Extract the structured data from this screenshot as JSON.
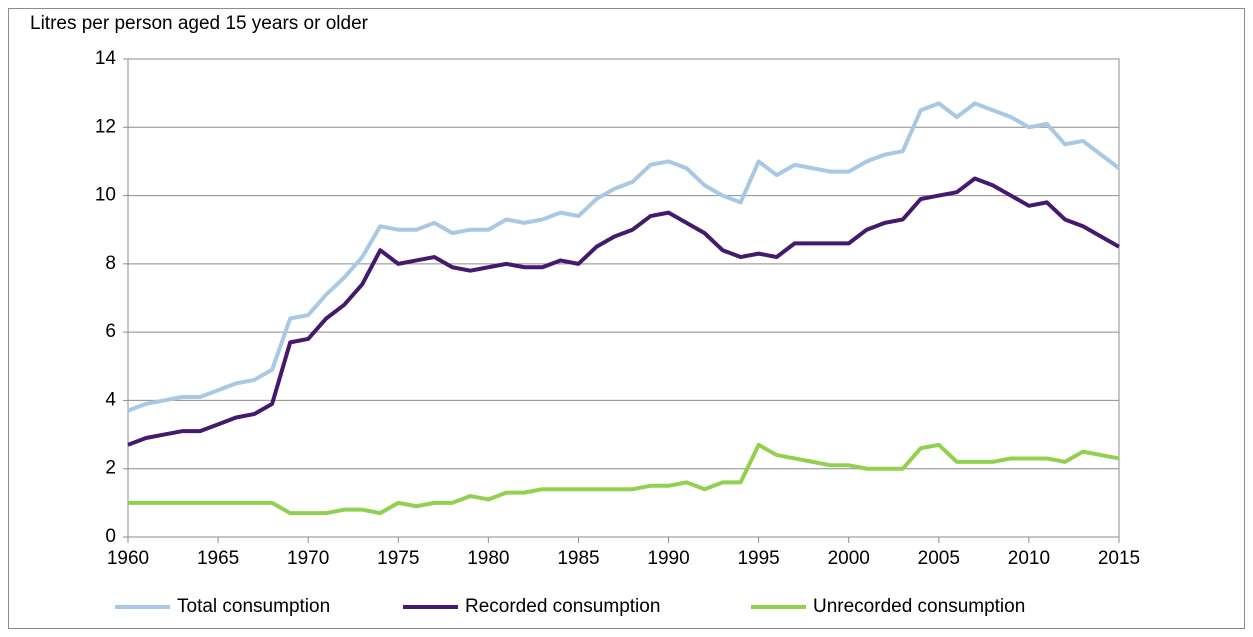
{
  "chart_data": {
    "type": "line",
    "y_label": "Litres per person aged 15 years or older",
    "x": [
      1960,
      1961,
      1962,
      1963,
      1964,
      1965,
      1966,
      1967,
      1968,
      1969,
      1970,
      1971,
      1972,
      1973,
      1974,
      1975,
      1976,
      1977,
      1978,
      1979,
      1980,
      1981,
      1982,
      1983,
      1984,
      1985,
      1986,
      1987,
      1988,
      1989,
      1990,
      1991,
      1992,
      1993,
      1994,
      1995,
      1996,
      1997,
      1998,
      1999,
      2000,
      2001,
      2002,
      2003,
      2004,
      2005,
      2006,
      2007,
      2008,
      2009,
      2010,
      2011,
      2012,
      2013,
      2014,
      2015
    ],
    "series": [
      {
        "name": "Total consumption",
        "color": "#a8c8e4",
        "values": [
          3.7,
          3.9,
          4.0,
          4.1,
          4.1,
          4.3,
          4.5,
          4.6,
          4.9,
          6.4,
          6.5,
          7.1,
          7.6,
          8.2,
          9.1,
          9.0,
          9.0,
          9.2,
          8.9,
          9.0,
          9.0,
          9.3,
          9.2,
          9.3,
          9.5,
          9.4,
          9.9,
          10.2,
          10.4,
          10.9,
          11.0,
          10.8,
          10.3,
          10.0,
          9.8,
          11.0,
          10.6,
          10.9,
          10.8,
          10.7,
          10.7,
          11.0,
          11.2,
          11.3,
          12.5,
          12.7,
          12.3,
          12.7,
          12.5,
          12.3,
          12.0,
          12.1,
          11.5,
          11.6,
          11.2,
          10.8
        ]
      },
      {
        "name": "Recorded consumption",
        "color": "#44196e",
        "values": [
          2.7,
          2.9,
          3.0,
          3.1,
          3.1,
          3.3,
          3.5,
          3.6,
          3.9,
          5.7,
          5.8,
          6.4,
          6.8,
          7.4,
          8.4,
          8.0,
          8.1,
          8.2,
          7.9,
          7.8,
          7.9,
          8.0,
          7.9,
          7.9,
          8.1,
          8.0,
          8.5,
          8.8,
          9.0,
          9.4,
          9.5,
          9.2,
          8.9,
          8.4,
          8.2,
          8.3,
          8.2,
          8.6,
          8.6,
          8.6,
          8.6,
          9.0,
          9.2,
          9.3,
          9.9,
          10.0,
          10.1,
          10.5,
          10.3,
          10.0,
          9.7,
          9.8,
          9.3,
          9.1,
          8.8,
          8.5
        ]
      },
      {
        "name": "Unrecorded consumption",
        "color": "#92d050",
        "values": [
          1.0,
          1.0,
          1.0,
          1.0,
          1.0,
          1.0,
          1.0,
          1.0,
          1.0,
          0.7,
          0.7,
          0.7,
          0.8,
          0.8,
          0.7,
          1.0,
          0.9,
          1.0,
          1.0,
          1.2,
          1.1,
          1.3,
          1.3,
          1.4,
          1.4,
          1.4,
          1.4,
          1.4,
          1.4,
          1.5,
          1.5,
          1.6,
          1.4,
          1.6,
          1.6,
          2.7,
          2.4,
          2.3,
          2.2,
          2.1,
          2.1,
          2.0,
          2.0,
          2.0,
          2.6,
          2.7,
          2.2,
          2.2,
          2.2,
          2.3,
          2.3,
          2.3,
          2.2,
          2.5,
          2.4,
          2.3
        ]
      }
    ],
    "xlim": [
      1960,
      2015
    ],
    "xticks": [
      1960,
      1965,
      1970,
      1975,
      1980,
      1985,
      1990,
      1995,
      2000,
      2005,
      2010,
      2015
    ],
    "ylim": [
      0,
      14
    ],
    "yticks": [
      0,
      2,
      4,
      6,
      8,
      10,
      12,
      14
    ],
    "grid": true,
    "legend": "bottom"
  }
}
